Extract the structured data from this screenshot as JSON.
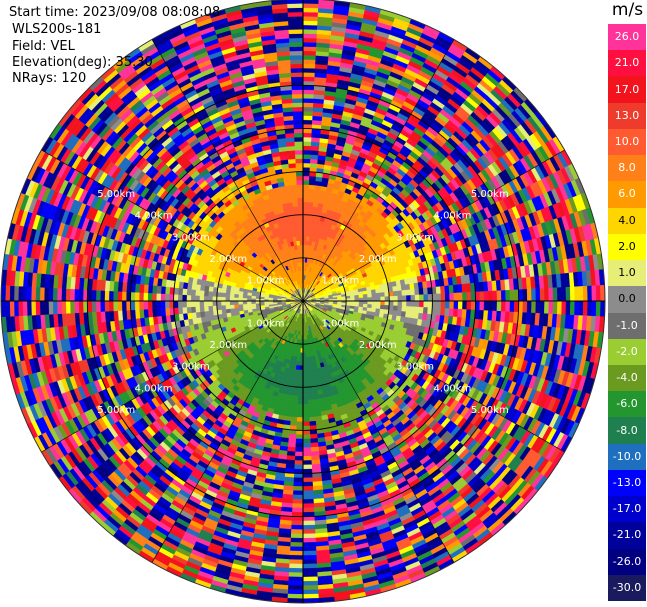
{
  "header": {
    "start_time": "Start time: 2023/09/08 08:08:08",
    "site": "WLS200s-181",
    "field": "Field: VEL",
    "elevation": "Elevation(deg): 35.30",
    "nrays": "NRays: 120"
  },
  "colorbar": {
    "unit": "m/s",
    "ticks": [
      "26.0",
      "21.0",
      "17.0",
      "13.0",
      "10.0",
      "8.0",
      "6.0",
      "4.0",
      "2.0",
      "1.0",
      "0.0",
      "-1.0",
      "-2.0",
      "-4.0",
      "-6.0",
      "-8.0",
      "-10.0",
      "-13.0",
      "-17.0",
      "-21.0",
      "-26.0",
      "-30.0"
    ],
    "colors": [
      "#ff3399",
      "#ff0f3f",
      "#f3131d",
      "#ef3b2b",
      "#ff5a30",
      "#ff8018",
      "#ff9a00",
      "#ffd500",
      "#ffff00",
      "#e6ee78",
      "#8c8c8c",
      "#6e6e6e",
      "#9acd32",
      "#6a9a20",
      "#23962f",
      "#1f7f4f",
      "#1e6fbf",
      "#0000ff",
      "#0000cd",
      "#00009a",
      "#000080",
      "#1a1a5e"
    ]
  },
  "chart_data": {
    "type": "heatmap",
    "projection": "polar PPI (plan position indicator)",
    "field": "VEL",
    "units": "m/s",
    "color_scale_min": -30.0,
    "color_scale_max": 26.0,
    "range_rings_km": [
      1.0,
      2.0,
      3.0,
      4.0,
      5.0
    ],
    "ring_labels": [
      "1.00km",
      "2.00km",
      "3.00km",
      "4.00km",
      "5.00km"
    ],
    "max_range_km": 7.0,
    "nrays": 120,
    "grid": true,
    "pattern": "positive velocities (yellow to orange, about 2 to 10 m/s) north of the site, negative velocities (green to blue, about -2 to -10 m/s) south of the site, grey near-zero band east-west, noisy multicolour returns beyond about 3 km"
  }
}
